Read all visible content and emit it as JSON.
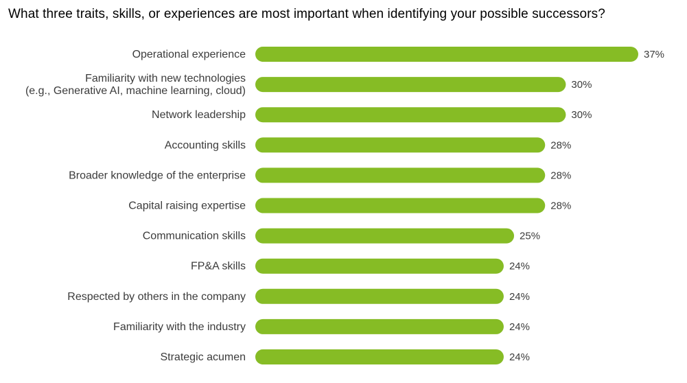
{
  "chart_data": {
    "type": "bar",
    "orientation": "horizontal",
    "title": "What three traits, skills, or experiences are most important when identifying your possible successors?",
    "bar_color": "#86bc25",
    "value_suffix": "%",
    "categories": [
      [
        "Operational experience"
      ],
      [
        "Familiarity with new technologies",
        "(e.g., Generative AI, machine learning, cloud)"
      ],
      [
        "Network leadership"
      ],
      [
        "Accounting skills"
      ],
      [
        "Broader knowledge of the enterprise"
      ],
      [
        "Capital raising expertise"
      ],
      [
        "Communication skills"
      ],
      [
        "FP&A skills"
      ],
      [
        "Respected by others in the company"
      ],
      [
        "Familiarity with the industry"
      ],
      [
        "Strategic acumen"
      ]
    ],
    "values": [
      37,
      30,
      30,
      28,
      28,
      28,
      25,
      24,
      24,
      24,
      24
    ],
    "xlim": [
      0,
      37
    ],
    "grid": false,
    "legend": "none"
  }
}
